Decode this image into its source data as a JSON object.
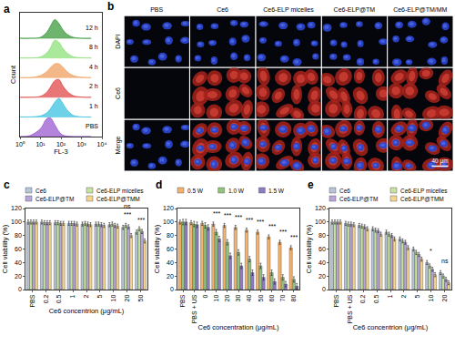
{
  "chart_data": [
    {
      "type": "ridgeline",
      "title": "a",
      "x_label": "FL-3",
      "y_label": "Count",
      "log": "x",
      "x": [
        1,
        3,
        10,
        20,
        30,
        50,
        80,
        120,
        200,
        400,
        1000,
        3000
      ],
      "xlim": [
        1,
        10000
      ],
      "xticks": [
        {
          "value": 1,
          "label": "10⁰"
        },
        {
          "value": 10,
          "label": "10¹"
        },
        {
          "value": 100,
          "label": "10²"
        },
        {
          "value": 1000,
          "label": "10³"
        },
        {
          "value": 10000,
          "label": "10⁴"
        }
      ],
      "tick_labels": "x",
      "grid": false,
      "series": [
        {
          "name": "PBS",
          "color": "#9b59d0",
          "values": [
            0,
            0.05,
            0.4,
            0.9,
            0.95,
            0.6,
            0.25,
            0.08,
            0.02,
            0,
            0,
            0
          ]
        },
        {
          "name": "1 h",
          "color": "#3cc3e0",
          "values": [
            0,
            0,
            0.05,
            0.2,
            0.4,
            0.75,
            0.95,
            0.7,
            0.35,
            0.08,
            0,
            0
          ]
        },
        {
          "name": "2 h",
          "color": "#e04848",
          "values": [
            0,
            0,
            0.05,
            0.25,
            0.5,
            0.85,
            0.9,
            0.6,
            0.3,
            0.08,
            0.01,
            0
          ]
        },
        {
          "name": "4 h",
          "color": "#f0a060",
          "values": [
            0,
            0,
            0.1,
            0.3,
            0.5,
            0.7,
            0.7,
            0.55,
            0.3,
            0.1,
            0.02,
            0
          ]
        },
        {
          "name": "8 h",
          "color": "#8ee07a",
          "values": [
            0,
            0,
            0.05,
            0.25,
            0.5,
            0.9,
            0.8,
            0.5,
            0.25,
            0.06,
            0.01,
            0
          ]
        },
        {
          "name": "12 h",
          "color": "#3d9a3d",
          "values": [
            0,
            0,
            0.05,
            0.3,
            0.6,
            0.95,
            0.75,
            0.45,
            0.2,
            0.05,
            0,
            0
          ]
        }
      ]
    },
    {
      "type": "bar",
      "title": "c",
      "x_label": "Ce6 concentrion (μg/mL)",
      "y_label": "Cell viability (%)",
      "categories": [
        "PBS",
        "0.2",
        "0.5",
        "1",
        "2",
        "5",
        "10",
        "20",
        "50"
      ],
      "ylim": [
        0,
        120
      ],
      "yticks": [
        0,
        20,
        40,
        60,
        80,
        100,
        120
      ],
      "grid": false,
      "legend": "top",
      "series": [
        {
          "name": "Ce6",
          "color": "#b8c4d8",
          "values": [
            100,
            100,
            99,
            98,
            97,
            97,
            96,
            92,
            85
          ],
          "errors": [
            3,
            3,
            3,
            3,
            3,
            3,
            3,
            3,
            3
          ]
        },
        {
          "name": "Ce6-ELP micelles",
          "color": "#c6e3a0",
          "values": [
            100,
            99,
            99,
            98,
            98,
            97,
            97,
            95,
            90
          ],
          "errors": [
            3,
            3,
            3,
            3,
            3,
            3,
            3,
            3,
            3
          ]
        },
        {
          "name": "Ce6-ELP@TM",
          "color": "#b7a6d9",
          "values": [
            100,
            99,
            98,
            98,
            97,
            96,
            95,
            93,
            86
          ],
          "errors": [
            3,
            3,
            3,
            3,
            3,
            3,
            3,
            3,
            3
          ]
        },
        {
          "name": "Ce6-ELP@TMM",
          "color": "#f5d48e",
          "values": [
            100,
            99,
            98,
            97,
            96,
            95,
            94,
            80,
            72
          ],
          "errors": [
            3,
            3,
            3,
            3,
            3,
            3,
            3,
            3,
            3
          ]
        }
      ],
      "annotations": [
        {
          "category": "20",
          "y": 104,
          "text": "***"
        },
        {
          "category": "20",
          "y": 116,
          "text": "ns"
        },
        {
          "category": "50",
          "y": 96,
          "text": "***"
        }
      ]
    },
    {
      "type": "bar",
      "title": "d",
      "x_label": "Ce6 concentration (μg/mL)",
      "y_label": "Cell viability (%)",
      "categories": [
        "PBS",
        "PBS + US",
        "0",
        "10",
        "20",
        "30",
        "40",
        "50",
        "60",
        "70",
        "80"
      ],
      "ylim": [
        0,
        120
      ],
      "yticks": [
        0,
        20,
        40,
        60,
        80,
        100,
        120
      ],
      "grid": false,
      "legend": "top",
      "series": [
        {
          "name": "0.5 W",
          "color": "#f6b26b",
          "values": [
            100,
            99,
            98,
            97,
            95,
            92,
            88,
            85,
            78,
            70,
            62
          ],
          "errors": [
            3,
            3,
            3,
            3,
            3,
            3,
            3,
            3,
            3,
            3,
            3
          ]
        },
        {
          "name": "1.0 W",
          "color": "#93c47d",
          "values": [
            100,
            97,
            95,
            85,
            70,
            55,
            45,
            35,
            25,
            18,
            15
          ],
          "errors": [
            4,
            4,
            4,
            4,
            4,
            4,
            4,
            4,
            4,
            4,
            4
          ]
        },
        {
          "name": "1.5 W",
          "color": "#8e7cc3",
          "values": [
            100,
            96,
            92,
            75,
            50,
            35,
            25,
            18,
            12,
            8,
            5
          ],
          "errors": [
            4,
            4,
            4,
            4,
            4,
            4,
            4,
            4,
            4,
            4,
            4
          ]
        }
      ],
      "annotations": [
        {
          "category": "10",
          "y": 105,
          "text": "***"
        },
        {
          "category": "20",
          "y": 103,
          "text": "***"
        },
        {
          "category": "30",
          "y": 100,
          "text": "***"
        },
        {
          "category": "40",
          "y": 96,
          "text": "***"
        },
        {
          "category": "50",
          "y": 93,
          "text": "***"
        },
        {
          "category": "60",
          "y": 86,
          "text": "***"
        },
        {
          "category": "70",
          "y": 78,
          "text": "***"
        },
        {
          "category": "80",
          "y": 70,
          "text": "***"
        }
      ]
    },
    {
      "type": "bar",
      "title": "e",
      "x_label": "Ce6 concentrion (μg/mL)",
      "y_label": "Cell viability (%)",
      "categories": [
        "PBS",
        "PBS + US",
        "0.2",
        "0.5",
        "1",
        "2",
        "5",
        "10",
        "20"
      ],
      "ylim": [
        0,
        120
      ],
      "yticks": [
        0,
        20,
        40,
        60,
        80,
        100,
        120
      ],
      "grid": false,
      "legend": "top",
      "series": [
        {
          "name": "Ce6",
          "color": "#b8c4d8",
          "values": [
            100,
            98,
            95,
            90,
            85,
            75,
            60,
            40,
            25
          ],
          "errors": [
            3,
            3,
            3,
            3,
            3,
            3,
            3,
            3,
            3
          ]
        },
        {
          "name": "Ce6-ELP micelles",
          "color": "#c6e3a0",
          "values": [
            100,
            97,
            94,
            88,
            82,
            72,
            55,
            35,
            20
          ],
          "errors": [
            3,
            3,
            3,
            3,
            3,
            3,
            3,
            3,
            3
          ]
        },
        {
          "name": "Ce6-ELP@TM",
          "color": "#b7a6d9",
          "values": [
            100,
            97,
            93,
            87,
            80,
            70,
            52,
            30,
            15
          ],
          "errors": [
            3,
            3,
            3,
            3,
            3,
            3,
            3,
            3,
            3
          ]
        },
        {
          "name": "Ce6-ELP@TMM",
          "color": "#f5d48e",
          "values": [
            100,
            96,
            90,
            82,
            75,
            62,
            45,
            22,
            10
          ],
          "errors": [
            3,
            3,
            3,
            3,
            3,
            3,
            3,
            3,
            3
          ]
        }
      ],
      "annotations": [
        {
          "category": "10",
          "y": 50,
          "text": "*"
        },
        {
          "category": "20",
          "y": 35,
          "text": "ns"
        }
      ]
    }
  ],
  "image_panel": {
    "title": "b",
    "columns": [
      "PBS",
      "Ce6",
      "Ce6-ELP micelles",
      "Ce6-ELP@TM",
      "Ce6-ELP@TM/MM"
    ],
    "rows": [
      "DAPI",
      "Ce6",
      "Merge"
    ],
    "ce6_signal": [
      false,
      true,
      true,
      true,
      true
    ],
    "scale_bar": "40 μm"
  }
}
